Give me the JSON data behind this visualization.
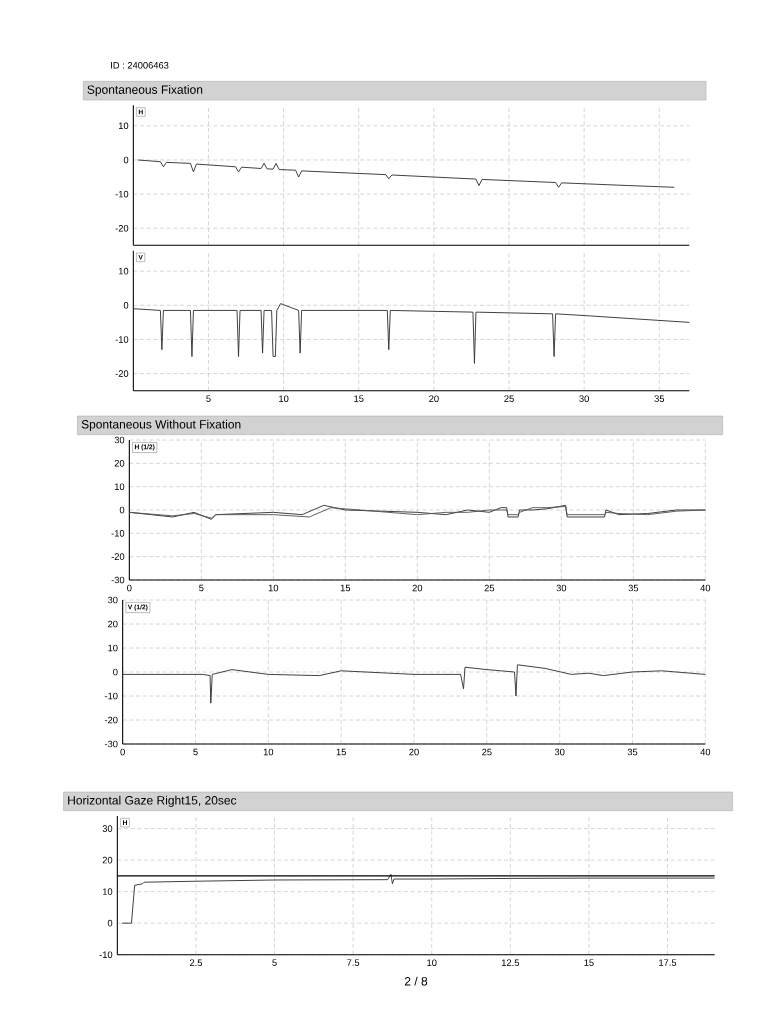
{
  "chart_data": [
    {
      "type": "line",
      "title": "H",
      "annotations": [
        "ID :  24006463",
        "Spontaneous Fixation"
      ],
      "xlim": [
        0,
        37
      ],
      "ylim": [
        -25,
        16
      ],
      "xticks": [
        5,
        10,
        15,
        20,
        25,
        30,
        35
      ],
      "yticks": [
        -20,
        -10,
        0,
        10
      ],
      "tick_labels": "y",
      "grid": true,
      "line_style": "solid",
      "series": [
        {
          "color": "#333333",
          "x": [
            0.3,
            1.8,
            2.0,
            2.2,
            3.8,
            4.0,
            4.2,
            6.8,
            7.0,
            7.2,
            8.5,
            8.7,
            8.9,
            9.3,
            9.5,
            9.7,
            10.8,
            11.0,
            11.2,
            16.8,
            17.0,
            17.2,
            20,
            22.8,
            23,
            23.2,
            28.1,
            28.3,
            28.5,
            33,
            36
          ],
          "values": [
            0,
            -0.5,
            -2,
            -0.7,
            -1,
            -3.5,
            -1.2,
            -2,
            -3.5,
            -2.1,
            -2.5,
            -1,
            -2.6,
            -2.7,
            -1,
            -2.8,
            -3,
            -5,
            -3.2,
            -4.3,
            -5.5,
            -4.4,
            -5,
            -5.6,
            -7.5,
            -5.7,
            -6.6,
            -8,
            -6.7,
            -7.5,
            -8
          ]
        }
      ]
    },
    {
      "type": "line",
      "title": "V",
      "xlim": [
        0,
        37
      ],
      "ylim": [
        -25,
        16
      ],
      "xticks": [
        5,
        10,
        15,
        20,
        25,
        30,
        35
      ],
      "yticks": [
        -20,
        -10,
        0,
        10
      ],
      "grid": true,
      "line_style": "solid",
      "series": [
        {
          "color": "#333333",
          "x": [
            0,
            1.8,
            1.9,
            2.0,
            3.8,
            3.9,
            4.0,
            6.9,
            7.0,
            7.1,
            8.5,
            8.6,
            8.7,
            9.2,
            9.3,
            9.45,
            9.55,
            9.8,
            11.0,
            11.1,
            11.2,
            16.9,
            17.0,
            17.1,
            22.6,
            22.7,
            22.8,
            27.9,
            28.0,
            28.1,
            30,
            37
          ],
          "values": [
            -1,
            -1.5,
            -13,
            -1.5,
            -1.5,
            -15,
            -1.5,
            -1.5,
            -15,
            -1.5,
            -1.5,
            -14,
            -1.5,
            -1.5,
            -15,
            -15,
            -1.5,
            0.5,
            -1.5,
            -14,
            -1.5,
            -1.5,
            -13,
            -1.5,
            -2,
            -17,
            -2,
            -2.5,
            -15,
            -2.5,
            -3,
            -5
          ]
        }
      ]
    },
    {
      "type": "line",
      "title": "H (1/2)",
      "annotations": [
        "Spontaneous Without Fixation"
      ],
      "xlim": [
        0,
        40
      ],
      "ylim": [
        -30,
        30
      ],
      "xticks": [
        0,
        5,
        10,
        15,
        20,
        25,
        30,
        35,
        40
      ],
      "yticks": [
        -30,
        -20,
        -10,
        0,
        10,
        20,
        30
      ],
      "grid": true,
      "line_style": "solid",
      "series": [
        {
          "color": "#333333",
          "x": [
            0,
            3,
            4.5,
            5.7,
            6,
            10,
            12,
            13.5,
            15,
            20,
            22,
            23.5,
            25,
            25.8,
            26.2,
            26.3,
            27,
            27.1,
            28,
            29,
            30.3,
            30.4,
            33,
            33.1,
            34,
            36,
            38,
            40
          ],
          "values": [
            -1,
            -3,
            -1,
            -4,
            -2,
            -1,
            -2,
            2,
            0,
            -1,
            -2,
            0,
            -1,
            1,
            1,
            -3,
            -3,
            0,
            0,
            0.5,
            2,
            -3,
            -3,
            0,
            -2,
            -1.5,
            0,
            0
          ]
        },
        {
          "color": "#555555",
          "x": [
            0,
            3,
            4.5,
            5.7,
            6,
            10,
            12.5,
            14,
            15,
            20,
            22,
            23.5,
            25,
            25.8,
            26.2,
            26.3,
            27,
            27.1,
            28,
            29,
            30.3,
            30.4,
            33,
            33.1,
            34,
            36,
            38,
            40
          ],
          "values": [
            -1,
            -2.5,
            -1.5,
            -3.5,
            -2,
            -2,
            -3,
            1,
            0.5,
            -2,
            -1,
            -1,
            0,
            0,
            0,
            -2,
            -2,
            -1,
            1,
            1,
            1.5,
            -2,
            -2,
            -1,
            -1.5,
            -2,
            -0.5,
            0
          ]
        }
      ]
    },
    {
      "type": "line",
      "title": "V (1/2)",
      "xlim": [
        0,
        40
      ],
      "ylim": [
        -30,
        30
      ],
      "xticks": [
        0,
        5,
        10,
        15,
        20,
        25,
        30,
        35,
        40
      ],
      "yticks": [
        -30,
        -20,
        -10,
        0,
        10,
        20,
        30
      ],
      "grid": true,
      "line_style": "solid",
      "series": [
        {
          "color": "#333333",
          "x": [
            0,
            5.5,
            6,
            6.05,
            6.15,
            7.5,
            10,
            13.5,
            15,
            20,
            23.2,
            23.4,
            23.5,
            25,
            26.9,
            27,
            27.1,
            29,
            30.8,
            32,
            33,
            35,
            37,
            40
          ],
          "values": [
            -1,
            -1,
            -1.5,
            -13,
            -1,
            1,
            -1,
            -1.5,
            0.5,
            -1,
            -1,
            -7,
            2,
            1,
            0,
            -10,
            3,
            1.5,
            -1,
            -0.5,
            -1.5,
            0,
            0.5,
            -1
          ]
        }
      ]
    },
    {
      "type": "line",
      "title": "H",
      "annotations": [
        "Horizontal Gaze Right15, 20sec",
        "2 / 8"
      ],
      "xlim": [
        0,
        19
      ],
      "ylim": [
        -10,
        34
      ],
      "xticks": [
        2.5,
        5,
        7.5,
        10,
        12.5,
        15,
        17.5
      ],
      "yticks": [
        -10,
        0,
        10,
        20,
        30
      ],
      "grid": true,
      "line_style": "solid",
      "ref_lines": [
        {
          "axis": "y",
          "value": 15,
          "color": "#000000"
        }
      ],
      "series": [
        {
          "color": "#333333",
          "x": [
            0.15,
            0.45,
            0.5,
            0.55,
            0.8,
            0.85,
            2.5,
            5,
            8.6,
            8.7,
            8.75,
            8.8,
            10,
            12.5,
            15,
            19
          ],
          "values": [
            0,
            0,
            6,
            12,
            12.5,
            13,
            13.3,
            13.7,
            13.8,
            15.5,
            12.5,
            14,
            14,
            14.2,
            14.3,
            14.3
          ]
        }
      ]
    }
  ]
}
